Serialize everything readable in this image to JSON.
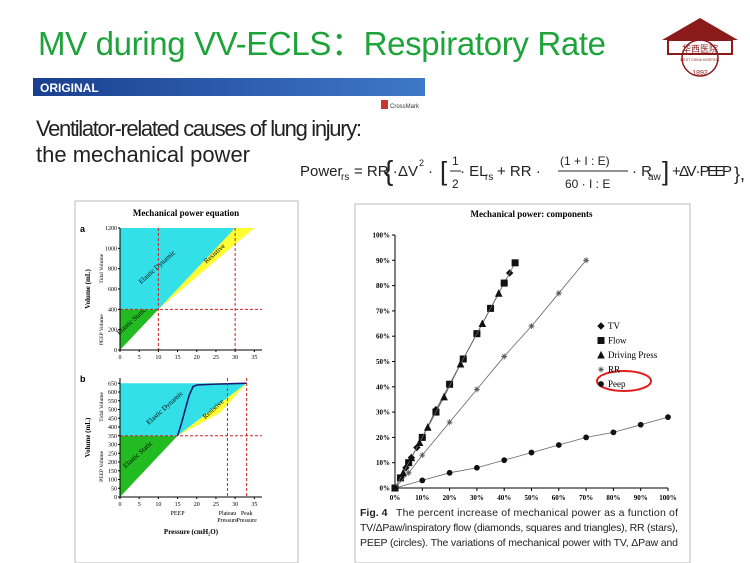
{
  "title": "MV during VV-ECLS：Respiratory Rate",
  "banner": "ORIGINAL",
  "heading": [
    "Ventilator-related causes of lung injury:",
    "the mechanical power"
  ],
  "crossmark": "CrossMark",
  "logo": {
    "name": "华西医院",
    "subtext": "WEST CHINA HOSPITAL",
    "year": "1892"
  },
  "formula": [
    "Power",
    "rs",
    "= RR ·",
    "{",
    "ΔV",
    "2",
    "·",
    "[",
    "1",
    "2",
    "· EL",
    "rs",
    "+ RR ·",
    "(1 + I : E)",
    "60 · I : E",
    "· R",
    "aw",
    "]",
    "+ ΔV · PEEP",
    "},"
  ],
  "left_figure_title": "Mechanical power equation",
  "caption": {
    "label": "Fig. 4",
    "lines": [
      "The percent increase of mechanical power as a function of",
      "TV/ΔPaw/inspiratory flow (diamonds, squares and triangles), RR (stars),",
      "PEEP (circles). The variations of mechanical power with TV, ΔPaw and"
    ]
  },
  "chart_data": [
    {
      "type": "area",
      "panel_label": "a",
      "xlim": [
        0,
        37
      ],
      "ylim": [
        0,
        1200
      ],
      "xticks": [
        0,
        5,
        10,
        15,
        20,
        25,
        30,
        35
      ],
      "yticks": [
        0,
        200,
        400,
        600,
        800,
        1000,
        1200
      ],
      "ylabel": "Volume (mL)",
      "side_labels": [
        "Tidal Volume",
        "PEEP Volume"
      ],
      "regions": [
        {
          "name": "Elastic Static",
          "color": "#22bb22",
          "x": [
            0,
            0,
            10
          ],
          "y": [
            0,
            400,
            400
          ]
        },
        {
          "name": "Elastic Dynamic",
          "color": "#33e0e8",
          "x": [
            0,
            10,
            30,
            0
          ],
          "y": [
            400,
            400,
            1200,
            1200
          ]
        },
        {
          "name": "Resistive",
          "color": "#ffff33",
          "x": [
            10,
            30,
            35
          ],
          "y": [
            400,
            1200,
            1200
          ]
        }
      ],
      "vlines": [
        10,
        30
      ],
      "hlines": [
        400
      ],
      "ref_color": "#cc2222"
    },
    {
      "type": "area",
      "panel_label": "b",
      "xlim": [
        0,
        37
      ],
      "ylim": [
        0,
        680
      ],
      "xticks": [
        0,
        5,
        10,
        15,
        20,
        25,
        30,
        35
      ],
      "yticks": [
        0,
        50,
        100,
        150,
        200,
        250,
        300,
        350,
        400,
        450,
        500,
        550,
        600,
        650
      ],
      "ylabel": "Volume (mL)",
      "side_labels": [
        "Tidal Volume",
        "PEEP Volume"
      ],
      "xlabel": "Pressure (cmH₂O)",
      "x_annotations": [
        {
          "x": 15,
          "label": [
            "PEEP"
          ]
        },
        {
          "x": 28,
          "label": [
            "Plateau",
            "Pressure"
          ]
        },
        {
          "x": 33,
          "label": [
            "Peak",
            "Pressure"
          ]
        }
      ],
      "regions": [
        {
          "name": "Elastic Static",
          "color": "#22bb22",
          "x": [
            0,
            0,
            15
          ],
          "y": [
            0,
            350,
            350
          ]
        },
        {
          "name": "Elastic Dynamic",
          "color": "#33e0e8",
          "x": [
            0,
            15,
            33,
            0
          ],
          "y": [
            350,
            350,
            650,
            650
          ]
        },
        {
          "name": "Resistive",
          "color": "#ffff33",
          "x": [
            15,
            33,
            26
          ],
          "y": [
            350,
            650,
            480
          ]
        }
      ],
      "curve": {
        "color": "#1a1a6e",
        "x": [
          15,
          16,
          17,
          18,
          19,
          20,
          25,
          30,
          33
        ],
        "y": [
          350,
          420,
          500,
          580,
          630,
          640,
          645,
          648,
          650
        ]
      },
      "vlines": [
        28,
        33
      ],
      "hlines": [
        350
      ],
      "ref_color": "#cc2222"
    },
    {
      "type": "line",
      "title": "Mechanical power: components",
      "xlim": [
        0,
        100
      ],
      "ylim": [
        0,
        100
      ],
      "xticks": [
        {
          "value": 0,
          "label": "0%"
        },
        {
          "value": 10,
          "label": "10%"
        },
        {
          "value": 20,
          "label": "20%"
        },
        {
          "value": 30,
          "label": "30%"
        },
        {
          "value": 40,
          "label": "40%"
        },
        {
          "value": 50,
          "label": "50%"
        },
        {
          "value": 60,
          "label": "60%"
        },
        {
          "value": 70,
          "label": "70%"
        },
        {
          "value": 80,
          "label": "80%"
        },
        {
          "value": 90,
          "label": "90%"
        },
        {
          "value": 100,
          "label": "100%"
        }
      ],
      "yticks": [
        {
          "value": 0,
          "label": "0%"
        },
        {
          "value": 10,
          "label": "10%"
        },
        {
          "value": 20,
          "label": "20%"
        },
        {
          "value": 30,
          "label": "30%"
        },
        {
          "value": 40,
          "label": "40%"
        },
        {
          "value": 50,
          "label": "50%"
        },
        {
          "value": 60,
          "label": "60%"
        },
        {
          "value": 70,
          "label": "70%"
        },
        {
          "value": 80,
          "label": "80%"
        },
        {
          "value": 90,
          "label": "90%"
        },
        {
          "value": 100,
          "label": "100%"
        }
      ],
      "legend": "right",
      "series": [
        {
          "name": "TV",
          "color": "#111111",
          "marker": "diamond",
          "x": [
            0,
            2,
            4,
            6,
            8,
            10,
            15,
            20,
            25,
            30,
            35,
            40,
            42
          ],
          "values": [
            0,
            4,
            8,
            12,
            16,
            20,
            31,
            41,
            51,
            61,
            71,
            81,
            85
          ]
        },
        {
          "name": "Flow",
          "color": "#111111",
          "marker": "square",
          "x": [
            0,
            2,
            5,
            10,
            15,
            20,
            25,
            30,
            35,
            40,
            44
          ],
          "values": [
            0,
            4,
            10,
            20,
            30,
            41,
            51,
            61,
            71,
            81,
            89
          ]
        },
        {
          "name": "Driving Press",
          "color": "#111111",
          "marker": "triangle",
          "x": [
            0,
            3,
            6,
            9,
            12,
            18,
            24,
            32,
            38
          ],
          "values": [
            0,
            6,
            12,
            18,
            24,
            36,
            49,
            65,
            77
          ]
        },
        {
          "name": "RR",
          "color": "#555555",
          "marker": "star",
          "x": [
            0,
            5,
            10,
            20,
            30,
            40,
            50,
            60,
            70
          ],
          "values": [
            0,
            6,
            13,
            26,
            39,
            52,
            64,
            77,
            90
          ]
        },
        {
          "name": "Peep",
          "color": "#111111",
          "marker": "circle",
          "x": [
            0,
            10,
            20,
            30,
            40,
            50,
            60,
            70,
            80,
            90,
            100
          ],
          "values": [
            0,
            3,
            6,
            8,
            11,
            14,
            17,
            20,
            22,
            25,
            28
          ]
        }
      ]
    }
  ]
}
